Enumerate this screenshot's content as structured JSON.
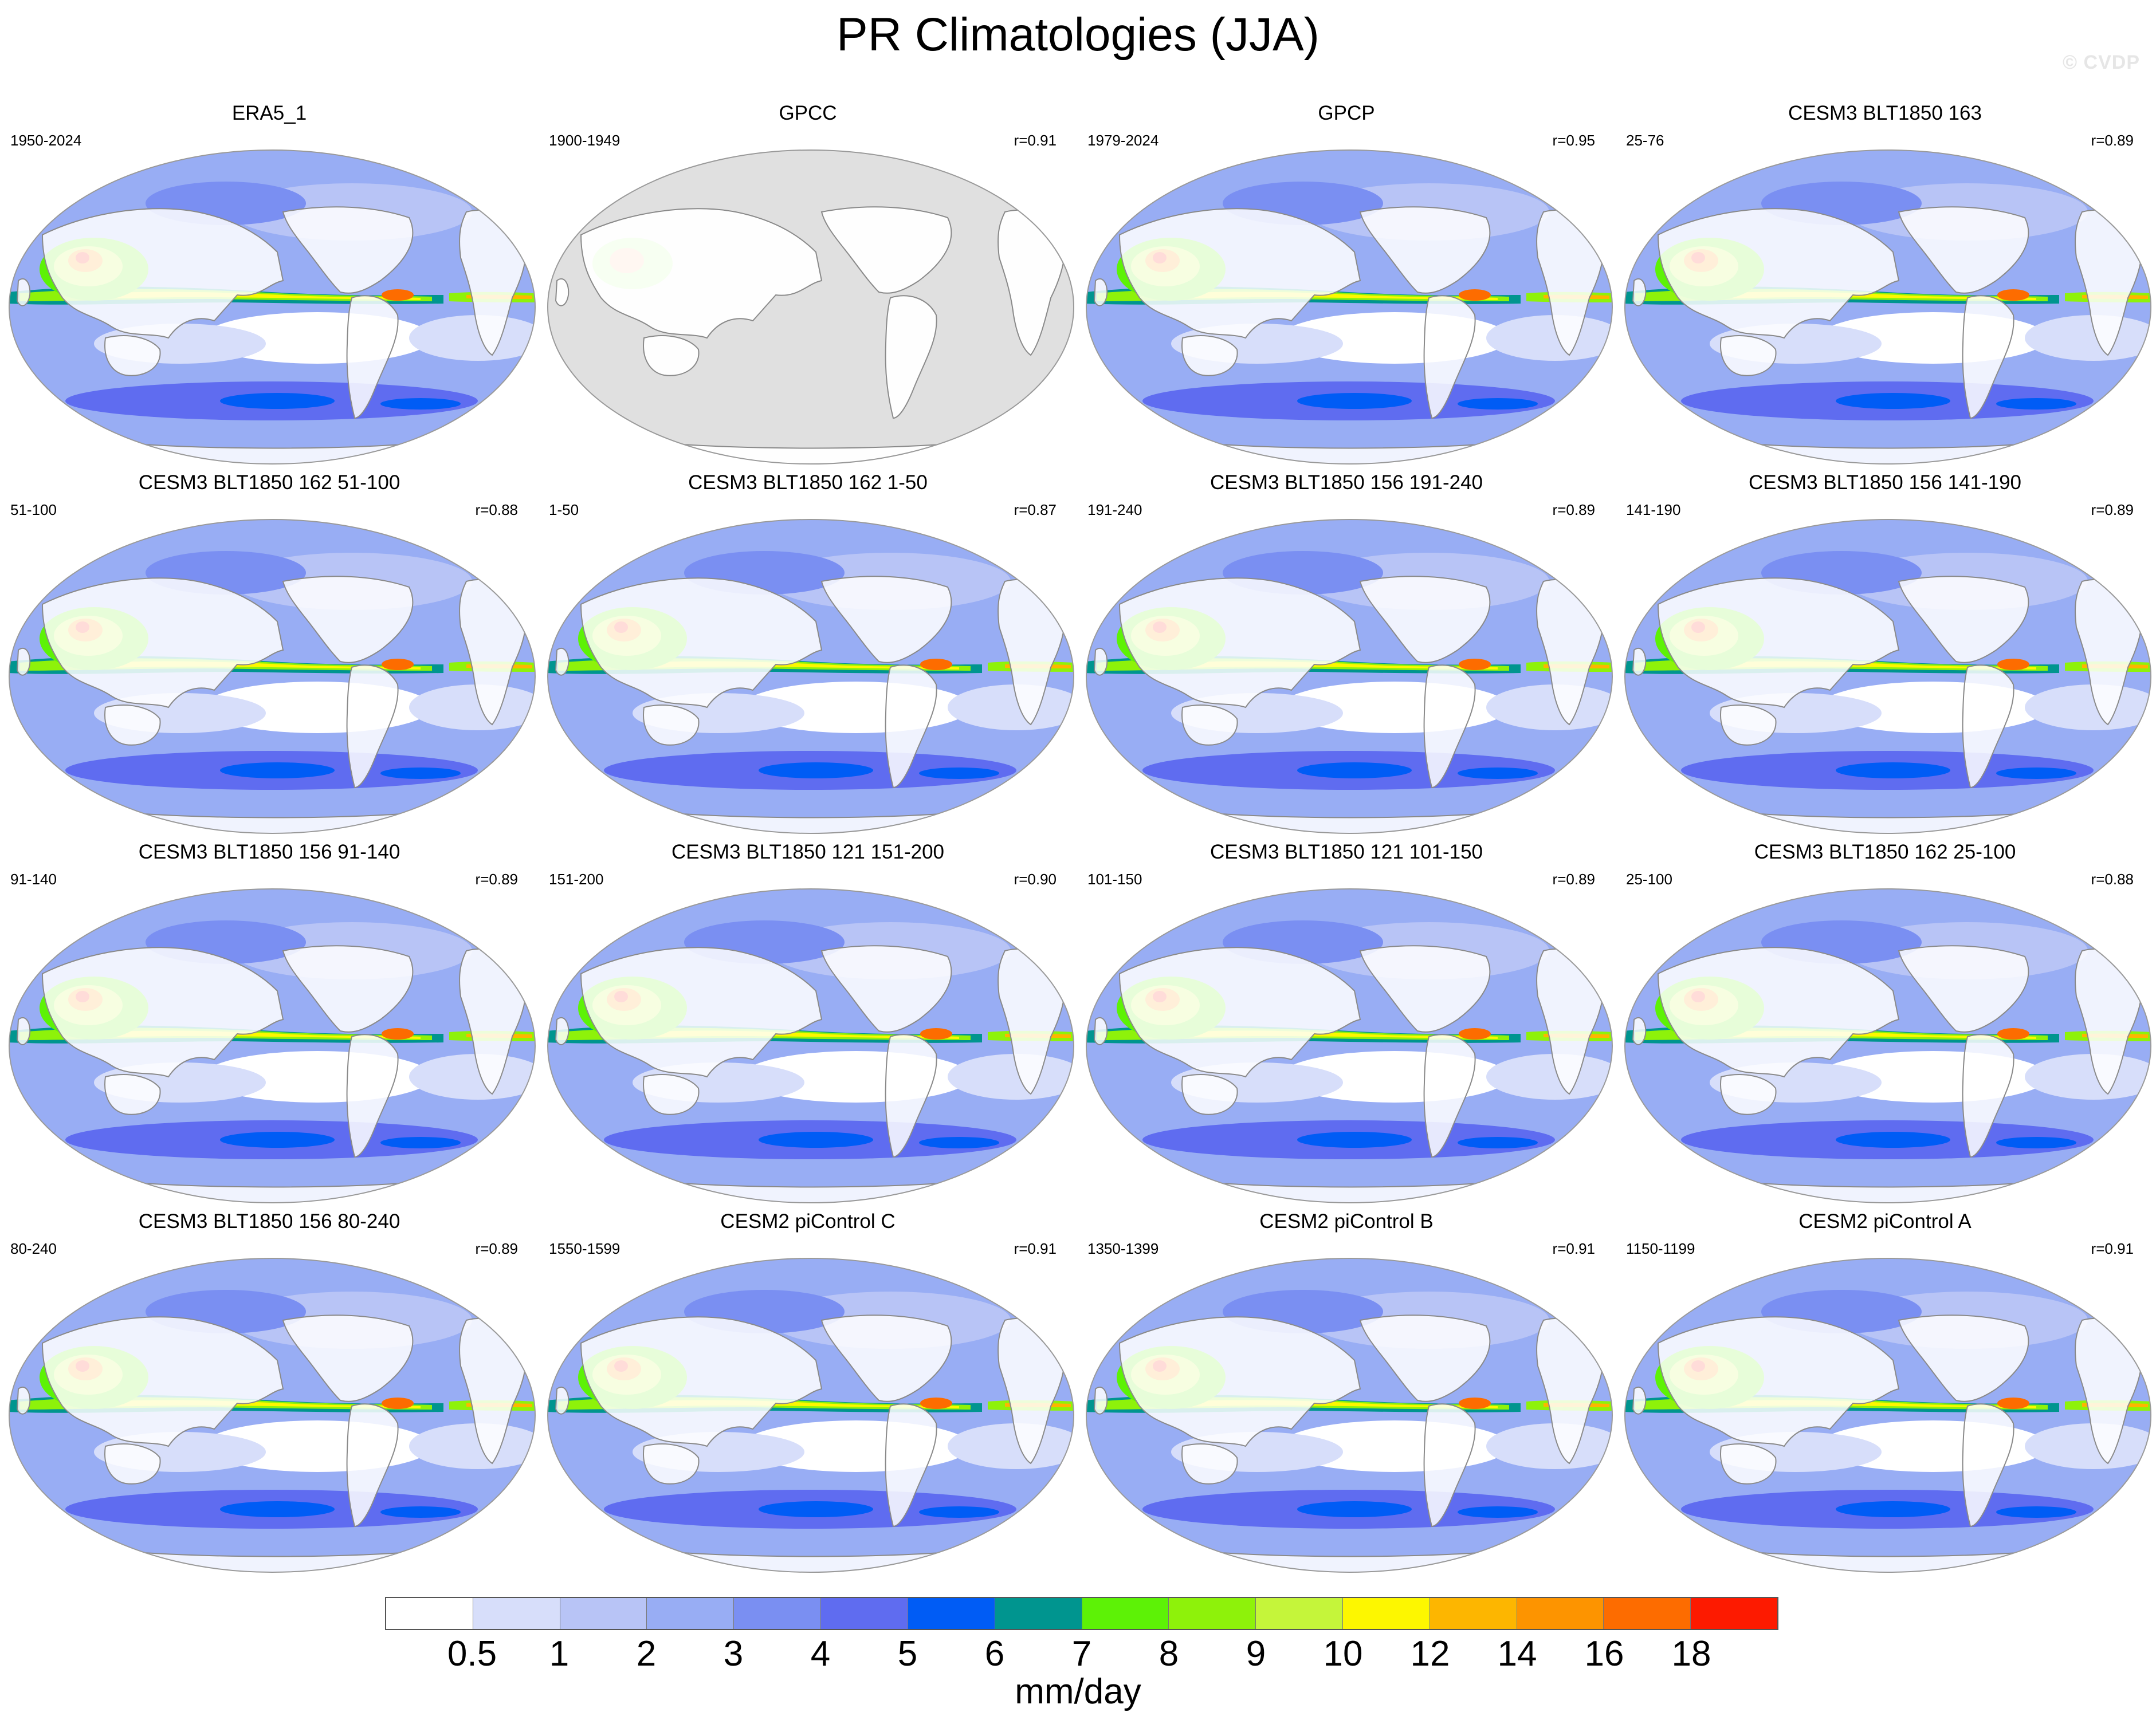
{
  "title": "PR Climatologies (JJA)",
  "watermark": "© CVDP",
  "panels": [
    {
      "name": "ERA5_1",
      "years": "1950-2024",
      "corr": "",
      "missing_ocean": false
    },
    {
      "name": "GPCC",
      "years": "1900-1949",
      "corr": "r=0.91",
      "missing_ocean": true
    },
    {
      "name": "GPCP",
      "years": "1979-2024",
      "corr": "r=0.95",
      "missing_ocean": false
    },
    {
      "name": "CESM3 BLT1850 163",
      "years": "25-76",
      "corr": "r=0.89",
      "missing_ocean": false
    },
    {
      "name": "CESM3 BLT1850 162 51-100",
      "years": "51-100",
      "corr": "r=0.88",
      "missing_ocean": false
    },
    {
      "name": "CESM3 BLT1850 162 1-50",
      "years": "1-50",
      "corr": "r=0.87",
      "missing_ocean": false
    },
    {
      "name": "CESM3 BLT1850 156 191-240",
      "years": "191-240",
      "corr": "r=0.89",
      "missing_ocean": false
    },
    {
      "name": "CESM3 BLT1850 156 141-190",
      "years": "141-190",
      "corr": "r=0.89",
      "missing_ocean": false
    },
    {
      "name": "CESM3 BLT1850 156 91-140",
      "years": "91-140",
      "corr": "r=0.89",
      "missing_ocean": false
    },
    {
      "name": "CESM3 BLT1850 121 151-200",
      "years": "151-200",
      "corr": "r=0.90",
      "missing_ocean": false
    },
    {
      "name": "CESM3 BLT1850 121 101-150",
      "years": "101-150",
      "corr": "r=0.89",
      "missing_ocean": false
    },
    {
      "name": "CESM3 BLT1850 162 25-100",
      "years": "25-100",
      "corr": "r=0.88",
      "missing_ocean": false
    },
    {
      "name": "CESM3 BLT1850 156 80-240",
      "years": "80-240",
      "corr": "r=0.89",
      "missing_ocean": false
    },
    {
      "name": "CESM2 piControl C",
      "years": "1550-1599",
      "corr": "r=0.91",
      "missing_ocean": false
    },
    {
      "name": "CESM2 piControl B",
      "years": "1350-1399",
      "corr": "r=0.91",
      "missing_ocean": false
    },
    {
      "name": "CESM2 piControl A",
      "years": "1150-1199",
      "corr": "r=0.91",
      "missing_ocean": false
    }
  ],
  "colorbar": {
    "colors": [
      "#ffffff",
      "#d7defa",
      "#b8c4f6",
      "#98adf4",
      "#7a8ff2",
      "#5f6cf0",
      "#005cf5",
      "#00958f",
      "#5df206",
      "#8ef20a",
      "#c5f53a",
      "#fdf700",
      "#fdb600",
      "#fd9400",
      "#fd6c00",
      "#fd1a00"
    ],
    "tick_labels": [
      "0.5",
      "1",
      "2",
      "3",
      "4",
      "5",
      "6",
      "7",
      "8",
      "9",
      "10",
      "12",
      "14",
      "16",
      "18"
    ],
    "units": "mm/day"
  }
}
